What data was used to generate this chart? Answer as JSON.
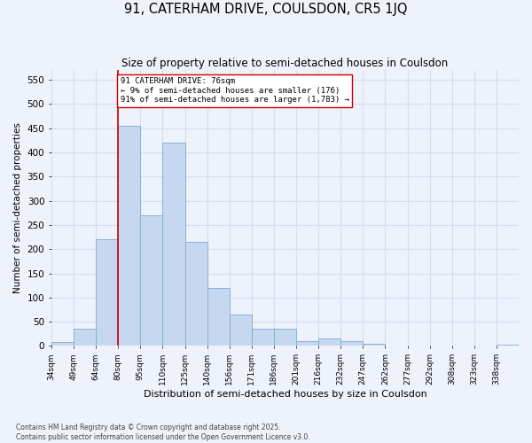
{
  "title1": "91, CATERHAM DRIVE, COULSDON, CR5 1JQ",
  "title2": "Size of property relative to semi-detached houses in Coulsdon",
  "xlabel": "Distribution of semi-detached houses by size in Coulsdon",
  "ylabel": "Number of semi-detached properties",
  "property_size_bin": 3,
  "annotation_line1": "91 CATERHAM DRIVE: 76sqm",
  "annotation_line2": "← 9% of semi-detached houses are smaller (176)",
  "annotation_line3": "91% of semi-detached houses are larger (1,783) →",
  "bar_color": "#c5d8f0",
  "bar_edge_color": "#7aadd4",
  "vline_color": "#cc0000",
  "background_color": "#eef2fb",
  "grid_color": "#d4ddf5",
  "footer1": "Contains HM Land Registry data © Crown copyright and database right 2025.",
  "footer2": "Contains public sector information licensed under the Open Government Licence v3.0.",
  "bin_labels": [
    "34sqm",
    "49sqm",
    "64sqm",
    "80sqm",
    "95sqm",
    "110sqm",
    "125sqm",
    "140sqm",
    "156sqm",
    "171sqm",
    "186sqm",
    "201sqm",
    "216sqm",
    "232sqm",
    "247sqm",
    "262sqm",
    "277sqm",
    "292sqm",
    "308sqm",
    "323sqm",
    "338sqm"
  ],
  "bar_heights": [
    8,
    35,
    220,
    455,
    270,
    420,
    215,
    120,
    65,
    35,
    35,
    10,
    15,
    10,
    5,
    0,
    0,
    0,
    0,
    0,
    3
  ],
  "n_bins": 21,
  "ylim": [
    0,
    570
  ],
  "yticks": [
    0,
    50,
    100,
    150,
    200,
    250,
    300,
    350,
    400,
    450,
    500,
    550
  ],
  "vline_x": 3
}
